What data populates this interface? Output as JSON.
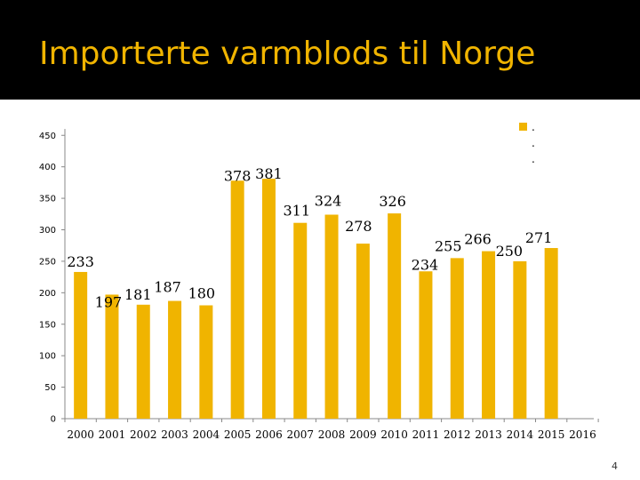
{
  "slide": {
    "title": "Importerte varmblods til Norge",
    "page_number": "4"
  },
  "colors": {
    "bar": "#f0b400",
    "title": "#f0b400",
    "band": "#000000"
  },
  "legend": {
    "label": ". . ."
  },
  "chart_data": {
    "type": "bar",
    "title": "Importerte varmblods til Norge",
    "categories": [
      "2000",
      "2001",
      "2002",
      "2003",
      "2004",
      "2005",
      "2006",
      "2007",
      "2008",
      "2009",
      "2010",
      "2011",
      "2012",
      "2013",
      "2014",
      "2015",
      "2016"
    ],
    "values": [
      233,
      197,
      181,
      187,
      180,
      378,
      381,
      311,
      324,
      278,
      326,
      234,
      255,
      266,
      250,
      271,
      null
    ],
    "data_labels": [
      "233",
      "197",
      "181",
      "187",
      "180",
      "378",
      "381",
      "311",
      "324",
      "278",
      "326",
      "234",
      "255",
      "266",
      "250",
      "271",
      ""
    ],
    "ylim": [
      0,
      480
    ],
    "yticks": [
      0,
      50,
      100,
      150,
      200,
      250,
      300,
      350,
      400,
      450
    ],
    "ytick_labels": [
      "0",
      "50",
      "100",
      "150",
      "200",
      "250",
      "300",
      "350",
      "400",
      "450"
    ],
    "xlabel": "",
    "ylabel": "",
    "grid": false,
    "legend_position": "top-right"
  }
}
